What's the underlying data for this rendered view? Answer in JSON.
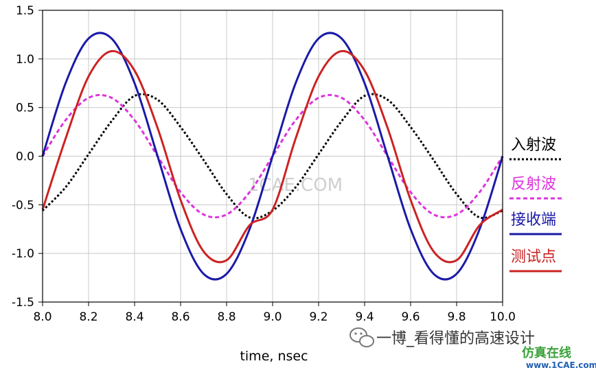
{
  "chart_data": {
    "type": "line",
    "title": "",
    "xlabel": "time, nsec",
    "ylabel": "",
    "xlim": [
      8.0,
      10.0
    ],
    "ylim": [
      -1.5,
      1.5
    ],
    "x_ticks": [
      "8.0",
      "8.2",
      "8.4",
      "8.6",
      "8.8",
      "9.0",
      "9.2",
      "9.4",
      "9.6",
      "9.8",
      "10.0"
    ],
    "y_ticks": [
      "1.5",
      "1.0",
      "0.5",
      "0.0",
      "-0.5",
      "-1.0",
      "-1.5"
    ],
    "grid": true,
    "legend_position": "right",
    "series": [
      {
        "name": "入射波",
        "color": "#000000",
        "style": "dotted",
        "x": [
          8.0,
          8.1,
          8.2,
          8.3,
          8.4,
          8.5,
          8.6,
          8.7,
          8.8,
          8.9,
          9.0,
          9.1,
          9.2,
          9.3,
          9.4,
          9.5,
          9.6,
          9.7,
          9.8,
          9.9,
          10.0
        ],
        "y": [
          -0.56,
          -0.32,
          0.02,
          0.36,
          0.62,
          0.58,
          0.3,
          -0.04,
          -0.39,
          -0.63,
          -0.56,
          -0.32,
          0.02,
          0.36,
          0.62,
          0.58,
          0.3,
          -0.04,
          -0.39,
          -0.63,
          -0.56
        ]
      },
      {
        "name": "反射波",
        "color": "#dd33dd",
        "style": "dashed",
        "x": [
          8.0,
          8.1,
          8.2,
          8.3,
          8.4,
          8.5,
          8.6,
          8.7,
          8.8,
          8.9,
          9.0,
          9.1,
          9.2,
          9.3,
          9.4,
          9.5,
          9.6,
          9.7,
          9.8,
          9.9,
          10.0
        ],
        "y": [
          0.0,
          0.37,
          0.6,
          0.6,
          0.37,
          0.0,
          -0.37,
          -0.6,
          -0.6,
          -0.37,
          0.0,
          0.37,
          0.6,
          0.6,
          0.37,
          0.0,
          -0.37,
          -0.6,
          -0.6,
          -0.37,
          0.0
        ]
      },
      {
        "name": "接收端",
        "color": "#1a1aa8",
        "style": "solid",
        "x": [
          8.0,
          8.1,
          8.2,
          8.3,
          8.4,
          8.5,
          8.6,
          8.7,
          8.8,
          8.9,
          9.0,
          9.1,
          9.2,
          9.3,
          9.4,
          9.5,
          9.6,
          9.7,
          9.8,
          9.9,
          10.0
        ],
        "y": [
          0.0,
          0.75,
          1.21,
          1.21,
          0.75,
          0.0,
          -0.75,
          -1.21,
          -1.21,
          -0.75,
          0.0,
          0.75,
          1.21,
          1.21,
          0.75,
          0.0,
          -0.75,
          -1.21,
          -1.21,
          -0.75,
          0.0
        ]
      },
      {
        "name": "测试点",
        "color": "#cc2222",
        "style": "solid",
        "x": [
          8.0,
          8.1,
          8.2,
          8.3,
          8.4,
          8.5,
          8.6,
          8.7,
          8.8,
          8.9,
          9.0,
          9.1,
          9.2,
          9.3,
          9.4,
          9.5,
          9.6,
          9.7,
          9.8,
          9.9,
          10.0
        ],
        "y": [
          -0.55,
          0.18,
          0.82,
          1.08,
          0.88,
          0.29,
          -0.45,
          -0.98,
          -1.07,
          -0.71,
          -0.55,
          0.18,
          0.82,
          1.08,
          0.88,
          0.29,
          -0.45,
          -0.98,
          -1.07,
          -0.71,
          -0.55
        ]
      }
    ]
  },
  "watermark": {
    "center_text": "1CAE.COM",
    "account_text": "一博_看得懂的高速设计",
    "brand_text_1": "仿真在线",
    "brand_text_2": "www.1CAE.com"
  },
  "colors": {
    "grid": "#c8c8c8",
    "axis": "#000000",
    "brand_green": "#3aa23a",
    "brand_blue": "#1f5fb4"
  }
}
